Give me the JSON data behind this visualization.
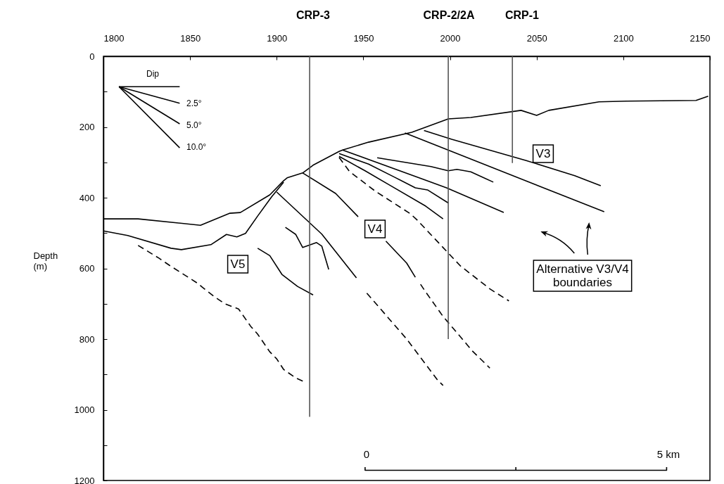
{
  "chart_data": {
    "type": "line",
    "ylabel": "Depth (m)",
    "xlim": [
      1800,
      2150
    ],
    "xticks": [
      1800,
      1850,
      1900,
      1950,
      2000,
      2050,
      2100,
      2150
    ],
    "ylim": [
      1200,
      0
    ],
    "yticks": [
      0,
      {
        "value": 100,
        "label": null
      },
      200,
      {
        "value": 300,
        "label": null
      },
      400,
      {
        "value": 500,
        "label": null
      },
      600,
      {
        "value": 700,
        "label": null
      },
      800,
      {
        "value": 900,
        "label": null
      },
      1000,
      {
        "value": 1100,
        "label": null
      },
      1200
    ],
    "grid": false,
    "marker": "none",
    "series": [
      {
        "color": "#000000",
        "line_style": "solid",
        "x": [
          1800,
          1820,
          1856,
          1873,
          1879,
          1896,
          1904,
          1906,
          1915,
          1921,
          1936,
          1938,
          1953,
          1978,
          1999,
          2012,
          2041,
          2050,
          2057,
          2086,
          2102,
          2142,
          2149
        ],
        "values": [
          460,
          460,
          478,
          444,
          442,
          392,
          352,
          344,
          330,
          308,
          269,
          265,
          243,
          215,
          177,
          173,
          153,
          167,
          153,
          129,
          127,
          125,
          113
        ]
      },
      {
        "color": "#000000",
        "line_style": "solid",
        "x": [
          1800,
          1814,
          1839,
          1845,
          1862,
          1871,
          1877,
          1882,
          1889,
          1897,
          1904
        ],
        "values": [
          494,
          507,
          543,
          547,
          533,
          504,
          511,
          501,
          452,
          398,
          356
        ]
      },
      {
        "color": "#000000",
        "line_style": "solid",
        "x": [
          1915,
          1934,
          1947
        ],
        "values": [
          330,
          388,
          454
        ]
      },
      {
        "color": "#000000",
        "line_style": "solid",
        "x": [
          1963,
          1975,
          1980
        ],
        "values": [
          523,
          585,
          625
        ]
      },
      {
        "color": "#000000",
        "line_style": "dashed",
        "x": [
          1983,
          1986,
          1996,
          2004,
          2013,
          2023
        ],
        "values": [
          645,
          667,
          736,
          782,
          834,
          882
        ]
      },
      {
        "color": "#000000",
        "line_style": "solid",
        "x": [
          1985,
          2001,
          2044,
          2072,
          2087
        ],
        "values": [
          210,
          235,
          295,
          338,
          366
        ]
      },
      {
        "color": "#000000",
        "line_style": "solid",
        "x": [
          1974,
          2089
        ],
        "values": [
          217,
          440
        ]
      },
      {
        "color": "#000000",
        "line_style": "solid",
        "x": [
          1938,
          1998,
          2031
        ],
        "values": [
          265,
          372,
          442
        ]
      },
      {
        "color": "#000000",
        "line_style": "solid",
        "x": [
          1958,
          1989,
          1999,
          2004,
          2012,
          2025
        ],
        "values": [
          287,
          312,
          324,
          320,
          327,
          356
        ]
      },
      {
        "color": "#000000",
        "line_style": "solid",
        "x": [
          1936,
          1953,
          1968,
          1980,
          1987,
          1999
        ],
        "values": [
          275,
          305,
          342,
          372,
          378,
          415
        ]
      },
      {
        "color": "#000000",
        "line_style": "solid",
        "x": [
          1936,
          1951,
          1965,
          1986,
          1996
        ],
        "values": [
          283,
          324,
          364,
          424,
          460
        ]
      },
      {
        "color": "#000000",
        "line_style": "dashed",
        "x": [
          1936,
          1942,
          1957,
          1977,
          1981,
          1996,
          2006,
          2023,
          2034
        ],
        "values": [
          286,
          326,
          382,
          445,
          463,
          541,
          593,
          658,
          692
        ]
      },
      {
        "color": "#000000",
        "line_style": "solid",
        "x": [
          1900,
          1926,
          1946
        ],
        "values": [
          384,
          503,
          627
        ]
      },
      {
        "color": "#000000",
        "line_style": "dashed",
        "x": [
          1952,
          1975,
          1993,
          1996
        ],
        "values": [
          670,
          800,
          917,
          931
        ]
      },
      {
        "color": "#000000",
        "line_style": "solid",
        "x": [
          1905,
          1911,
          1915,
          1923,
          1926,
          1930
        ],
        "values": [
          484,
          504,
          541,
          527,
          537,
          603
        ]
      },
      {
        "color": "#000000",
        "line_style": "solid",
        "x": [
          1889,
          1896,
          1903,
          1912,
          1921
        ],
        "values": [
          543,
          564,
          617,
          651,
          675
        ]
      },
      {
        "color": "#000000",
        "line_style": "dashed",
        "x": [
          1820,
          1832,
          1838,
          1854,
          1857,
          1864,
          1870,
          1878,
          1885,
          1889,
          1896,
          1900,
          1904,
          1911,
          1917
        ],
        "values": [
          535,
          571,
          591,
          641,
          653,
          680,
          700,
          715,
          764,
          786,
          836,
          856,
          886,
          910,
          923
        ]
      },
      {
        "color": "#555555",
        "line_style": "solid",
        "x": [
          1919,
          1919
        ],
        "values": [
          0,
          1020
        ]
      },
      {
        "color": "#555555",
        "line_style": "solid",
        "x": [
          1999,
          1999
        ],
        "values": [
          0,
          800
        ]
      },
      {
        "color": "#555555",
        "line_style": "solid",
        "x": [
          2036,
          2036
        ],
        "values": [
          0,
          302
        ]
      },
      {
        "color": "#000000",
        "line_style": "solid",
        "x": [
          1809,
          1844
        ],
        "values": [
          86,
          86
        ]
      },
      {
        "color": "#000000",
        "line_style": "solid",
        "x": [
          1809,
          1844
        ],
        "values": [
          86,
          133
        ]
      },
      {
        "color": "#000000",
        "line_style": "solid",
        "x": [
          1809,
          1844
        ],
        "values": [
          86,
          191
        ]
      },
      {
        "color": "#000000",
        "line_style": "solid",
        "x": [
          1809,
          1844
        ],
        "values": [
          86,
          259
        ]
      },
      {
        "color": "#000000",
        "line_style": "solid",
        "x": [
          1951,
          1951,
          2125,
          2125
        ],
        "values": [
          1162,
          1171,
          1171,
          1162
        ]
      },
      {
        "color": "#000000",
        "line_style": "solid",
        "x": [
          2038,
          2038
        ],
        "values": [
          1171,
          1162
        ]
      }
    ],
    "annotations": [
      "CRP-3",
      "CRP-2/2A",
      "CRP-1",
      "Dip",
      "2.5°",
      "5.0°",
      "10.0°",
      "V5",
      "V4",
      "V3",
      "Alternative V3/V4\nboundaries",
      "0",
      "5 km"
    ]
  }
}
